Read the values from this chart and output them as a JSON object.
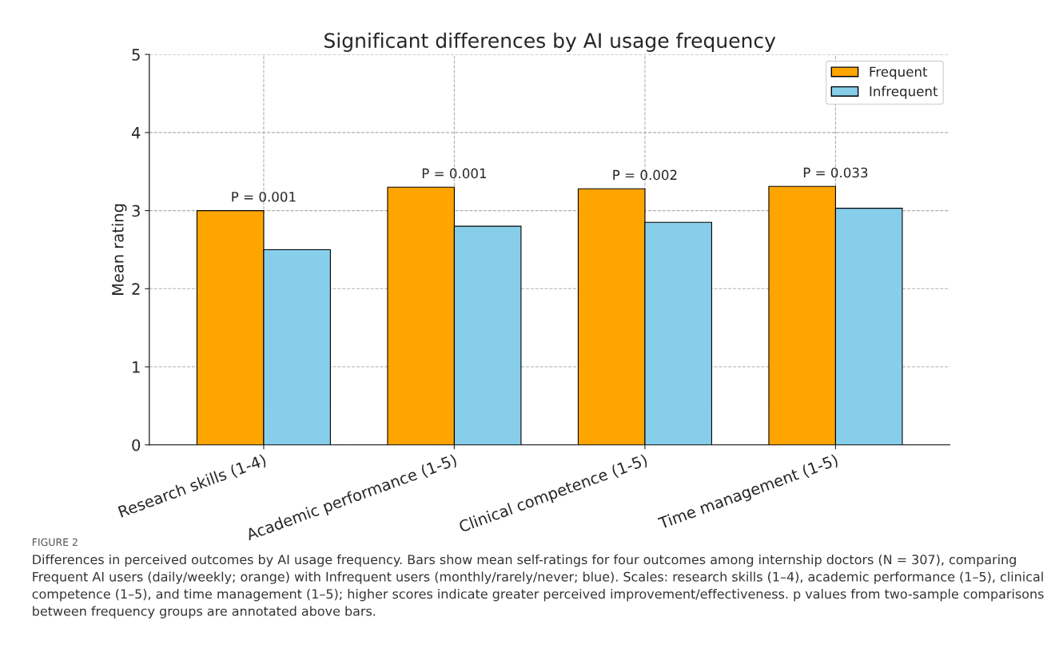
{
  "chart_data": {
    "type": "bar",
    "title": "Significant differences by AI usage frequency",
    "ylabel": "Mean rating",
    "categories": [
      "Research skills (1-4)",
      "Academic performance (1-5)",
      "Clinical competence (1-5)",
      "Time management (1-5)"
    ],
    "series": [
      {
        "name": "Frequent",
        "color": "#ffa500",
        "values": [
          3.0,
          3.3,
          3.28,
          3.31
        ]
      },
      {
        "name": "Infrequent",
        "color": "#87ceeb",
        "values": [
          2.5,
          2.8,
          2.85,
          3.03
        ]
      }
    ],
    "ylim": [
      0,
      5
    ],
    "yticks": [
      0,
      1,
      2,
      3,
      4,
      5
    ],
    "grid": true,
    "legend": "top right",
    "annotations": [
      {
        "text": "P = 0.001",
        "x": "Research skills (1-4)",
        "y": 3.0
      },
      {
        "text": "P = 0.001",
        "x": "Academic performance (1-5)",
        "y": 3.3
      },
      {
        "text": "P = 0.002",
        "x": "Clinical competence (1-5)",
        "y": 3.28
      },
      {
        "text": "P = 0.033",
        "x": "Time management (1-5)",
        "y": 3.31
      },
      "FIGURE 2",
      "Differences in perceived outcomes by AI usage frequency. Bars show mean self-ratings for four outcomes among internship doctors (N = 307), comparing Frequent AI users (daily/weekly; orange) with Infrequent users (monthly/rarely/never; blue). Scales: research skills (1–4), academic performance (1–5), clinical competence (1–5), and time management (1–5); higher scores indicate greater perceived improvement/effectiveness. p values from two-sample comparisons between frequency groups are annotated above bars."
    ]
  }
}
